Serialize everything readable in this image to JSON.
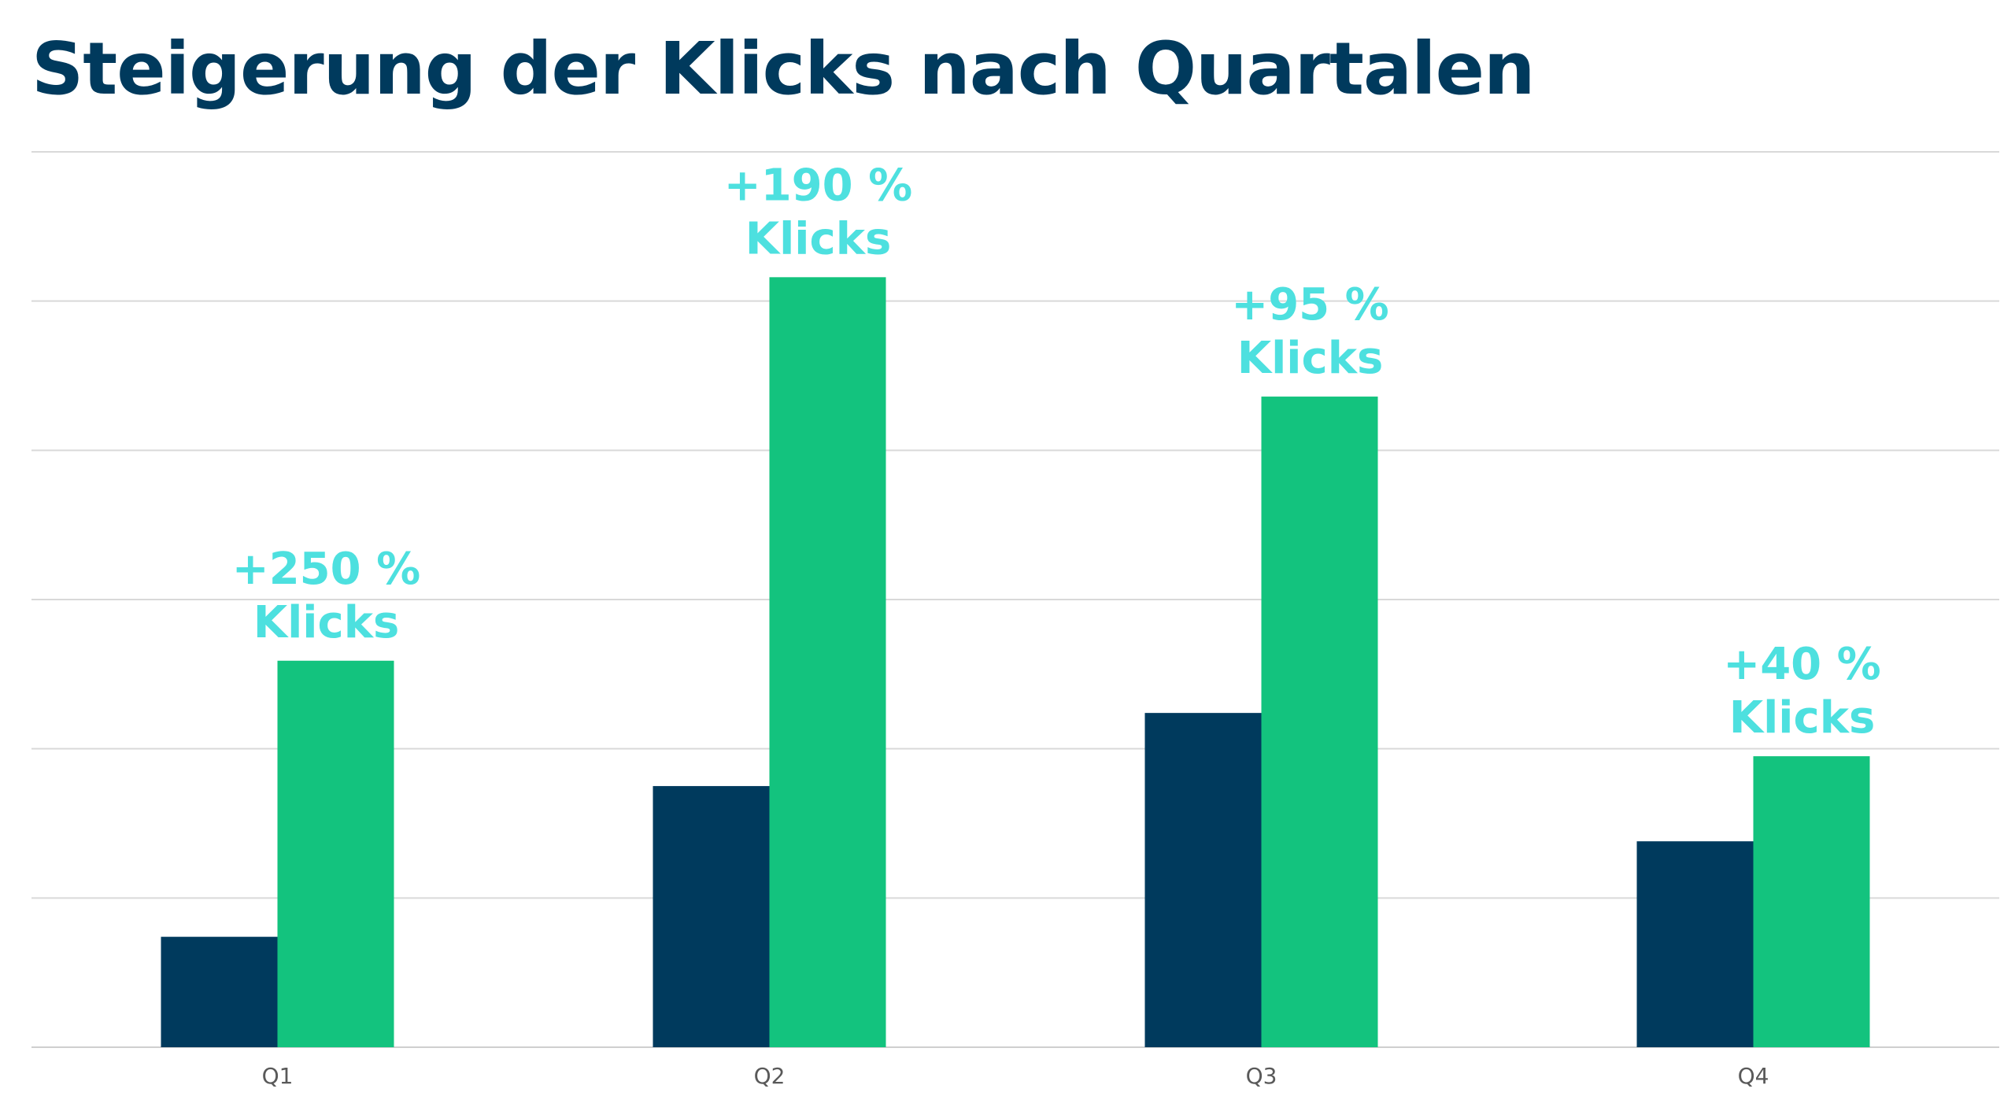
{
  "chart_data": {
    "type": "bar",
    "title": "Steigerung der Klicks nach Quartalen",
    "categories": [
      "Q1",
      "Q2",
      "Q3",
      "Q4"
    ],
    "series": [
      {
        "values": [
          0.74,
          1.75,
          2.24,
          1.38
        ],
        "color": "#003a5d"
      },
      {
        "values": [
          2.59,
          5.16,
          4.36,
          1.95
        ],
        "color": "#13c37e"
      }
    ],
    "data_labels": [
      [
        "+250 %",
        "Klicks"
      ],
      [
        "+190 %",
        "Klicks"
      ],
      [
        "+95 %",
        "Klicks"
      ],
      [
        "+40 %",
        "Klicks"
      ]
    ],
    "data_label_color": "#4de0df",
    "ylim": [
      0,
      6
    ],
    "y_tick_labels_shown": false,
    "grid": true,
    "xlabel": "",
    "ylabel": ""
  },
  "colors": {
    "title": "#003a5d",
    "grid": "#d9d9d9",
    "tick_label": "#595959"
  }
}
